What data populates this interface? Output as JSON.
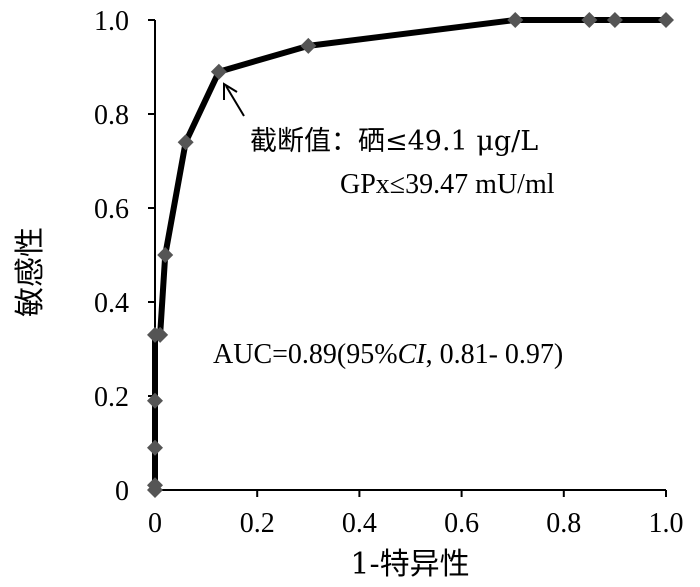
{
  "chart_data": {
    "type": "line",
    "title": "",
    "xlabel": "1-特异性",
    "ylabel": "敏感性",
    "xlim": [
      0,
      1.0
    ],
    "ylim": [
      0,
      1.0
    ],
    "grid": false,
    "legend": "none",
    "line_color": "#000000",
    "marker_color": "#555555",
    "marker": "diamond",
    "x_ticks": [
      0,
      0.2,
      0.4,
      0.6,
      0.8,
      1.0
    ],
    "x_tick_labels": [
      "0",
      "0.2",
      "0.4",
      "0.6",
      "0.8",
      "1.0"
    ],
    "y_ticks": [
      0,
      0.2,
      0.4,
      0.6,
      0.8,
      1.0
    ],
    "y_tick_labels": [
      "0",
      "0.2",
      "0.4",
      "0.6",
      "0.8",
      "1.0"
    ],
    "series": [
      {
        "x": [
          0,
          0,
          0,
          0,
          0,
          0.01,
          0.02,
          0.06,
          0.125,
          0.3,
          0.705,
          0.85,
          0.9,
          1.0
        ],
        "y": [
          0,
          0.01,
          0.09,
          0.19,
          0.33,
          0.33,
          0.5,
          0.74,
          0.89,
          0.945,
          1.0,
          1.0,
          1.0,
          1.0
        ]
      }
    ],
    "annotations": {
      "cutoff_line1": "截断值：硒≤49.1 μg/L",
      "cutoff_line2": "GPx≤39.47 mU/ml",
      "cutoff_point": {
        "x": 0.125,
        "y": 0.89
      },
      "auc_prefix": "AUC=0.89(95%",
      "auc_ci": "CI",
      "auc_suffix": ", 0.81- 0.97)"
    }
  }
}
